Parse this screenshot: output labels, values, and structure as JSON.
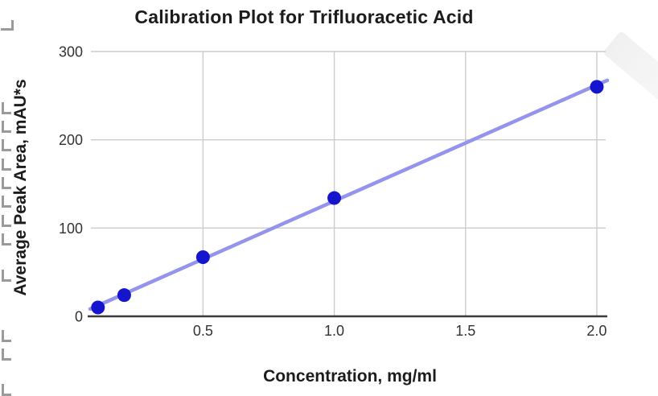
{
  "chart_data": {
    "type": "scatter",
    "title": "Calibration Plot for Trifluoracetic Acid",
    "xlabel": "Concentration, mg/ml",
    "ylabel": "Average Peak Area, mAU*s",
    "points": [
      {
        "x": 0.1,
        "y": 10
      },
      {
        "x": 0.2,
        "y": 24
      },
      {
        "x": 0.5,
        "y": 67
      },
      {
        "x": 1.0,
        "y": 134
      },
      {
        "x": 2.0,
        "y": 260
      }
    ],
    "trendline": {
      "type": "linear",
      "slope": 131.5,
      "intercept": -0.9
    },
    "xlim": [
      0.07,
      2.04
    ],
    "ylim": [
      0,
      300
    ],
    "xticks": [
      "0.5",
      "1.0",
      "1.5",
      "2.0"
    ],
    "xtick_values": [
      0.5,
      1.0,
      1.5,
      2.0
    ],
    "yticks": [
      "0",
      "100",
      "200",
      "300"
    ],
    "ytick_values": [
      0,
      100,
      200,
      300
    ],
    "grid": true,
    "legend": "none",
    "colors": {
      "point": "#1515cd",
      "trendline": "#9494ec",
      "gridline": "#cccccc",
      "axis": "#3c3c3c",
      "tick_text": "#333333",
      "title_text": "#1c1c1c"
    }
  },
  "artifacts": {
    "left_edge_mark_count": 13,
    "left_edge_mark_color": "#9a9a9a",
    "glare_color": "#f2f2f2"
  }
}
